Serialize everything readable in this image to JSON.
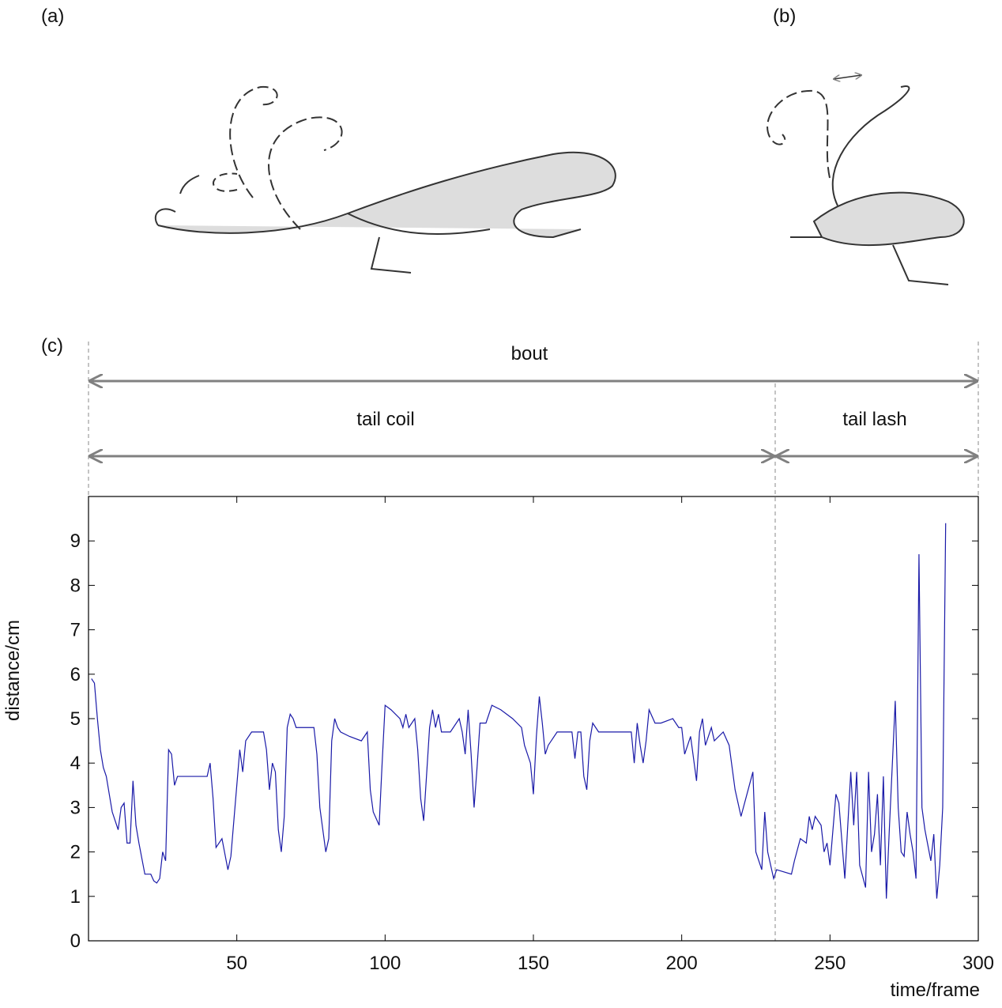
{
  "panel_labels": [
    "(a)",
    "(b)",
    "(c)"
  ],
  "chart_data": {
    "type": "line",
    "annotations": [
      "bout",
      "tail coil",
      "tail lash"
    ],
    "x_label": "time/frame",
    "y_label": "distance/cm",
    "xlim": [
      0,
      300
    ],
    "ylim": [
      0,
      10
    ],
    "xticks": [
      50,
      100,
      150,
      200,
      250,
      300
    ],
    "yticks": [
      0,
      1,
      2,
      3,
      4,
      5,
      6,
      7,
      8,
      9
    ],
    "color": "#1a1aa8",
    "x": [
      1,
      2,
      3,
      4,
      5,
      6,
      7,
      8,
      10,
      11,
      12,
      13,
      14,
      15,
      16,
      17,
      19,
      21,
      22,
      23,
      24,
      25,
      26,
      27,
      28,
      29,
      30,
      40,
      41,
      42,
      43,
      45,
      47,
      48,
      50,
      51,
      52,
      53,
      55,
      59,
      60,
      61,
      62,
      63,
      64,
      65,
      66,
      67,
      68,
      69,
      70,
      76,
      77,
      78,
      80,
      81,
      82,
      83,
      84,
      85,
      88,
      92,
      94,
      95,
      96,
      98,
      99,
      100,
      102,
      105,
      106,
      107,
      108,
      110,
      111,
      112,
      113,
      115,
      116,
      117,
      118,
      119,
      122,
      125,
      126,
      127,
      128,
      129,
      130,
      131,
      132,
      134,
      136,
      139,
      143,
      146,
      147,
      149,
      150,
      151,
      152,
      153,
      154,
      155,
      158,
      163,
      164,
      165,
      166,
      167,
      168,
      169,
      170,
      172,
      175,
      183,
      184,
      185,
      186,
      187,
      188,
      189,
      191,
      193,
      197,
      199,
      200,
      201,
      203,
      205,
      206,
      207,
      208,
      210,
      211,
      214,
      216,
      218,
      220,
      222,
      224,
      225,
      227,
      228,
      229,
      231,
      232,
      237,
      238,
      240,
      242,
      243,
      244,
      245,
      247,
      248,
      249,
      250,
      252,
      253,
      255,
      257,
      258,
      259,
      260,
      262,
      263,
      264,
      265,
      266,
      267,
      268,
      269,
      270,
      272,
      273,
      274,
      275,
      276,
      277,
      278,
      279,
      280,
      281,
      282,
      284,
      285,
      286,
      287,
      288,
      289
    ],
    "values": [
      5.9,
      5.8,
      5.0,
      4.3,
      3.9,
      3.7,
      3.3,
      2.9,
      2.5,
      3.0,
      3.1,
      2.2,
      2.2,
      3.6,
      2.6,
      2.2,
      1.5,
      1.5,
      1.35,
      1.3,
      1.4,
      2.0,
      1.8,
      4.3,
      4.2,
      3.5,
      3.7,
      3.7,
      4.0,
      3.2,
      2.1,
      2.3,
      1.6,
      1.9,
      3.5,
      4.3,
      3.8,
      4.5,
      4.7,
      4.7,
      4.3,
      3.4,
      4.0,
      3.8,
      2.5,
      2.0,
      2.8,
      4.8,
      5.1,
      5.0,
      4.8,
      4.8,
      4.2,
      3.0,
      2.0,
      2.3,
      4.5,
      5.0,
      4.8,
      4.7,
      4.6,
      4.5,
      4.7,
      3.4,
      2.9,
      2.6,
      4.0,
      5.3,
      5.2,
      5.0,
      4.8,
      5.1,
      4.8,
      5.0,
      4.3,
      3.2,
      2.7,
      4.8,
      5.2,
      4.8,
      5.1,
      4.7,
      4.7,
      5.0,
      4.7,
      4.2,
      5.2,
      4.2,
      3.0,
      3.9,
      4.9,
      4.9,
      5.3,
      5.2,
      5.0,
      4.8,
      4.4,
      4.0,
      3.3,
      4.6,
      5.5,
      4.9,
      4.2,
      4.4,
      4.7,
      4.7,
      4.1,
      4.7,
      4.7,
      3.7,
      3.4,
      4.5,
      4.9,
      4.7,
      4.7,
      4.7,
      4.0,
      4.9,
      4.4,
      4.0,
      4.5,
      5.2,
      4.9,
      4.9,
      5.0,
      4.8,
      4.8,
      4.2,
      4.6,
      3.6,
      4.7,
      5.0,
      4.4,
      4.8,
      4.5,
      4.7,
      4.4,
      3.4,
      2.8,
      3.3,
      3.8,
      2.0,
      1.6,
      2.9,
      2.0,
      1.4,
      1.6,
      1.5,
      1.8,
      2.3,
      2.2,
      2.8,
      2.5,
      2.8,
      2.6,
      2.0,
      2.2,
      1.7,
      3.3,
      3.1,
      1.4,
      3.8,
      2.6,
      3.8,
      1.7,
      1.2,
      3.8,
      2.0,
      2.4,
      3.3,
      1.7,
      3.7,
      0.95,
      2.5,
      5.4,
      3.0,
      2.0,
      1.9,
      2.9,
      2.4,
      2.0,
      1.4,
      8.7,
      3.0,
      2.5,
      1.8,
      2.4,
      0.95,
      1.7,
      3.0,
      9.4
    ]
  }
}
